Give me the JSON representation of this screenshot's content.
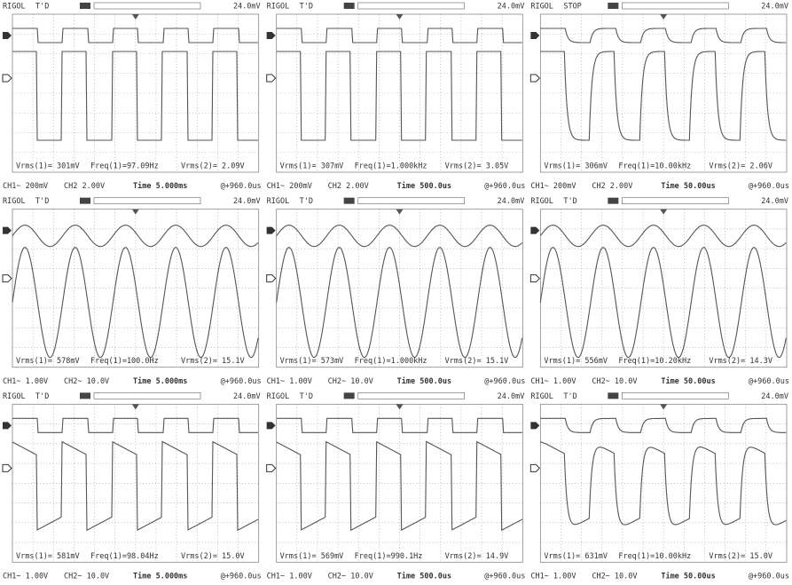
{
  "panels": [
    {
      "header": {
        "brand": "RIGOL",
        "status": "T'D",
        "trigger": "24.0mV"
      },
      "measurements": [
        "Vrms(1)= 301mV",
        "Freq(1)=97.09Hz",
        "Vrms(2)= 2.09V"
      ],
      "footer": {
        "ch1": "CH1~ 200mV",
        "ch2": "CH2 2.00V",
        "time": "Time 5.000ms",
        "offset": "@+960.0us"
      }
    },
    {
      "header": {
        "brand": "RIGOL",
        "status": "T'D",
        "trigger": "24.0mV"
      },
      "measurements": [
        "Vrms(1)= 307mV",
        "Freq(1)=1.000kHz",
        "Vrms(2)= 3.05V"
      ],
      "footer": {
        "ch1": "CH1~ 200mV",
        "ch2": "CH2 2.00V",
        "time": "Time 500.0us",
        "offset": "@+960.0us"
      }
    },
    {
      "header": {
        "brand": "RIGOL",
        "status": "STOP",
        "trigger": "24.0mV"
      },
      "measurements": [
        "Vrms(1)= 306mV",
        "Freq(1)=10.00kHz",
        "Vrms(2)= 2.06V"
      ],
      "footer": {
        "ch1": "CH1~ 200mV",
        "ch2": "CH2 2.00V",
        "time": "Time 50.00us",
        "offset": "@+960.0us"
      }
    },
    {
      "header": {
        "brand": "RIGOL",
        "status": "T'D",
        "trigger": "24.0mV"
      },
      "measurements": [
        "Vrms(1)= 578mV",
        "Freq(1)=100.0Hz",
        "Vrms(2)= 15.1V"
      ],
      "footer": {
        "ch1": "CH1~ 1.00V",
        "ch2": "CH2~ 10.0V",
        "time": "Time 5.000ms",
        "offset": "@+960.0us"
      }
    },
    {
      "header": {
        "brand": "RIGOL",
        "status": "T'D",
        "trigger": "24.0mV"
      },
      "measurements": [
        "Vrms(1)= 573mV",
        "Freq(1)=1.000kHz",
        "Vrms(2)= 15.1V"
      ],
      "footer": {
        "ch1": "CH1~ 1.00V",
        "ch2": "CH2~ 10.0V",
        "time": "Time 500.0us",
        "offset": "@+960.0us"
      }
    },
    {
      "header": {
        "brand": "RIGOL",
        "status": "T'D",
        "trigger": "24.0mV"
      },
      "measurements": [
        "Vrms(1)= 556mV",
        "Freq(1)=10.20kHz",
        "Vrms(2)= 14.3V"
      ],
      "footer": {
        "ch1": "CH1~ 1.00V",
        "ch2": "CH2~ 10.0V",
        "time": "Time 50.00us",
        "offset": "@+960.0us"
      }
    },
    {
      "header": {
        "brand": "RIGOL",
        "status": "T'D",
        "trigger": "24.0mV"
      },
      "measurements": [
        "Vrms(1)= 581mV",
        "Freq(1)=98.04Hz",
        "Vrms(2)= 15.0V"
      ],
      "footer": {
        "ch1": "CH1~ 1.00V",
        "ch2": "CH2~ 10.0V",
        "time": "Time 5.000ms",
        "offset": "@+960.0us"
      }
    },
    {
      "header": {
        "brand": "RIGOL",
        "status": "T'D",
        "trigger": "24.0mV"
      },
      "measurements": [
        "Vrms(1)= 569mV",
        "Freq(1)=990.1Hz",
        "Vrms(2)= 14.9V"
      ],
      "footer": {
        "ch1": "CH1~ 1.00V",
        "ch2": "CH2~ 10.0V",
        "time": "Time 500.0us",
        "offset": "@+960.0us"
      }
    },
    {
      "header": {
        "brand": "RIGOL",
        "status": "T'D",
        "trigger": "24.0mV"
      },
      "measurements": [
        "Vrms(1)= 631mV",
        "Freq(1)=10.00kHz",
        "Vrms(2)= 15.0V"
      ],
      "footer": {
        "ch1": "CH1~ 1.00V",
        "ch2": "CH2~ 10.0V",
        "time": "Time 50.00us",
        "offset": "@+960.0us"
      }
    }
  ]
}
